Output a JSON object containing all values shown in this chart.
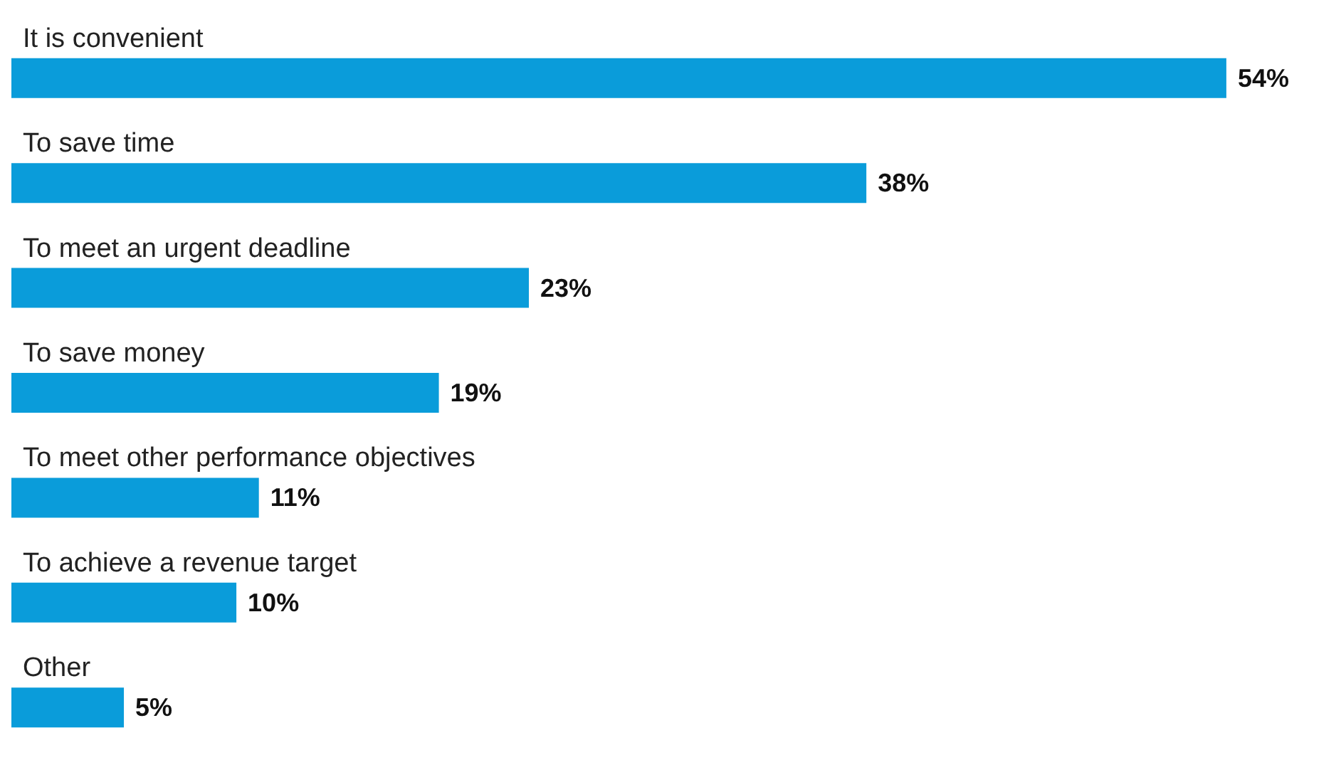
{
  "chart_data": {
    "type": "bar",
    "orientation": "horizontal",
    "categories": [
      "It is convenient",
      "To save time",
      "To meet an urgent deadline",
      "To save money",
      "To meet other performance objectives",
      "To achieve a revenue target",
      "Other"
    ],
    "values": [
      54,
      38,
      23,
      19,
      11,
      10,
      5
    ],
    "value_labels": [
      "54%",
      "38%",
      "23%",
      "19%",
      "11%",
      "10%",
      "5%"
    ],
    "color": "#0a9cda"
  }
}
